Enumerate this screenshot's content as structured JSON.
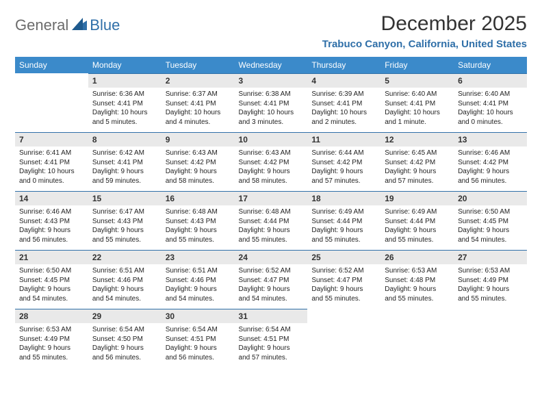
{
  "logo": {
    "word1": "General",
    "word2": "Blue"
  },
  "title": "December 2025",
  "location": "Trabuco Canyon, California, United States",
  "colors": {
    "header_bg": "#3b8aca",
    "header_text": "#ffffff",
    "daynum_bg": "#e9e9e9",
    "daynum_border": "#2f6fa8",
    "title_color": "#333333",
    "location_color": "#2f6fa8",
    "logo_gray": "#6b6b6b",
    "logo_blue": "#2f6fa8",
    "body_text": "#222222",
    "page_bg": "#ffffff"
  },
  "typography": {
    "title_fontsize": 30,
    "location_fontsize": 15,
    "dayheader_fontsize": 12,
    "daynum_fontsize": 12,
    "daybody_fontsize": 10
  },
  "day_headers": [
    "Sunday",
    "Monday",
    "Tuesday",
    "Wednesday",
    "Thursday",
    "Friday",
    "Saturday"
  ],
  "weeks": [
    [
      {
        "empty": true
      },
      {
        "num": "1",
        "sunrise": "Sunrise: 6:36 AM",
        "sunset": "Sunset: 4:41 PM",
        "daylight1": "Daylight: 10 hours",
        "daylight2": "and 5 minutes."
      },
      {
        "num": "2",
        "sunrise": "Sunrise: 6:37 AM",
        "sunset": "Sunset: 4:41 PM",
        "daylight1": "Daylight: 10 hours",
        "daylight2": "and 4 minutes."
      },
      {
        "num": "3",
        "sunrise": "Sunrise: 6:38 AM",
        "sunset": "Sunset: 4:41 PM",
        "daylight1": "Daylight: 10 hours",
        "daylight2": "and 3 minutes."
      },
      {
        "num": "4",
        "sunrise": "Sunrise: 6:39 AM",
        "sunset": "Sunset: 4:41 PM",
        "daylight1": "Daylight: 10 hours",
        "daylight2": "and 2 minutes."
      },
      {
        "num": "5",
        "sunrise": "Sunrise: 6:40 AM",
        "sunset": "Sunset: 4:41 PM",
        "daylight1": "Daylight: 10 hours",
        "daylight2": "and 1 minute."
      },
      {
        "num": "6",
        "sunrise": "Sunrise: 6:40 AM",
        "sunset": "Sunset: 4:41 PM",
        "daylight1": "Daylight: 10 hours",
        "daylight2": "and 0 minutes."
      }
    ],
    [
      {
        "num": "7",
        "sunrise": "Sunrise: 6:41 AM",
        "sunset": "Sunset: 4:41 PM",
        "daylight1": "Daylight: 10 hours",
        "daylight2": "and 0 minutes."
      },
      {
        "num": "8",
        "sunrise": "Sunrise: 6:42 AM",
        "sunset": "Sunset: 4:41 PM",
        "daylight1": "Daylight: 9 hours",
        "daylight2": "and 59 minutes."
      },
      {
        "num": "9",
        "sunrise": "Sunrise: 6:43 AM",
        "sunset": "Sunset: 4:42 PM",
        "daylight1": "Daylight: 9 hours",
        "daylight2": "and 58 minutes."
      },
      {
        "num": "10",
        "sunrise": "Sunrise: 6:43 AM",
        "sunset": "Sunset: 4:42 PM",
        "daylight1": "Daylight: 9 hours",
        "daylight2": "and 58 minutes."
      },
      {
        "num": "11",
        "sunrise": "Sunrise: 6:44 AM",
        "sunset": "Sunset: 4:42 PM",
        "daylight1": "Daylight: 9 hours",
        "daylight2": "and 57 minutes."
      },
      {
        "num": "12",
        "sunrise": "Sunrise: 6:45 AM",
        "sunset": "Sunset: 4:42 PM",
        "daylight1": "Daylight: 9 hours",
        "daylight2": "and 57 minutes."
      },
      {
        "num": "13",
        "sunrise": "Sunrise: 6:46 AM",
        "sunset": "Sunset: 4:42 PM",
        "daylight1": "Daylight: 9 hours",
        "daylight2": "and 56 minutes."
      }
    ],
    [
      {
        "num": "14",
        "sunrise": "Sunrise: 6:46 AM",
        "sunset": "Sunset: 4:43 PM",
        "daylight1": "Daylight: 9 hours",
        "daylight2": "and 56 minutes."
      },
      {
        "num": "15",
        "sunrise": "Sunrise: 6:47 AM",
        "sunset": "Sunset: 4:43 PM",
        "daylight1": "Daylight: 9 hours",
        "daylight2": "and 55 minutes."
      },
      {
        "num": "16",
        "sunrise": "Sunrise: 6:48 AM",
        "sunset": "Sunset: 4:43 PM",
        "daylight1": "Daylight: 9 hours",
        "daylight2": "and 55 minutes."
      },
      {
        "num": "17",
        "sunrise": "Sunrise: 6:48 AM",
        "sunset": "Sunset: 4:44 PM",
        "daylight1": "Daylight: 9 hours",
        "daylight2": "and 55 minutes."
      },
      {
        "num": "18",
        "sunrise": "Sunrise: 6:49 AM",
        "sunset": "Sunset: 4:44 PM",
        "daylight1": "Daylight: 9 hours",
        "daylight2": "and 55 minutes."
      },
      {
        "num": "19",
        "sunrise": "Sunrise: 6:49 AM",
        "sunset": "Sunset: 4:44 PM",
        "daylight1": "Daylight: 9 hours",
        "daylight2": "and 55 minutes."
      },
      {
        "num": "20",
        "sunrise": "Sunrise: 6:50 AM",
        "sunset": "Sunset: 4:45 PM",
        "daylight1": "Daylight: 9 hours",
        "daylight2": "and 54 minutes."
      }
    ],
    [
      {
        "num": "21",
        "sunrise": "Sunrise: 6:50 AM",
        "sunset": "Sunset: 4:45 PM",
        "daylight1": "Daylight: 9 hours",
        "daylight2": "and 54 minutes."
      },
      {
        "num": "22",
        "sunrise": "Sunrise: 6:51 AM",
        "sunset": "Sunset: 4:46 PM",
        "daylight1": "Daylight: 9 hours",
        "daylight2": "and 54 minutes."
      },
      {
        "num": "23",
        "sunrise": "Sunrise: 6:51 AM",
        "sunset": "Sunset: 4:46 PM",
        "daylight1": "Daylight: 9 hours",
        "daylight2": "and 54 minutes."
      },
      {
        "num": "24",
        "sunrise": "Sunrise: 6:52 AM",
        "sunset": "Sunset: 4:47 PM",
        "daylight1": "Daylight: 9 hours",
        "daylight2": "and 54 minutes."
      },
      {
        "num": "25",
        "sunrise": "Sunrise: 6:52 AM",
        "sunset": "Sunset: 4:47 PM",
        "daylight1": "Daylight: 9 hours",
        "daylight2": "and 55 minutes."
      },
      {
        "num": "26",
        "sunrise": "Sunrise: 6:53 AM",
        "sunset": "Sunset: 4:48 PM",
        "daylight1": "Daylight: 9 hours",
        "daylight2": "and 55 minutes."
      },
      {
        "num": "27",
        "sunrise": "Sunrise: 6:53 AM",
        "sunset": "Sunset: 4:49 PM",
        "daylight1": "Daylight: 9 hours",
        "daylight2": "and 55 minutes."
      }
    ],
    [
      {
        "num": "28",
        "sunrise": "Sunrise: 6:53 AM",
        "sunset": "Sunset: 4:49 PM",
        "daylight1": "Daylight: 9 hours",
        "daylight2": "and 55 minutes."
      },
      {
        "num": "29",
        "sunrise": "Sunrise: 6:54 AM",
        "sunset": "Sunset: 4:50 PM",
        "daylight1": "Daylight: 9 hours",
        "daylight2": "and 56 minutes."
      },
      {
        "num": "30",
        "sunrise": "Sunrise: 6:54 AM",
        "sunset": "Sunset: 4:51 PM",
        "daylight1": "Daylight: 9 hours",
        "daylight2": "and 56 minutes."
      },
      {
        "num": "31",
        "sunrise": "Sunrise: 6:54 AM",
        "sunset": "Sunset: 4:51 PM",
        "daylight1": "Daylight: 9 hours",
        "daylight2": "and 57 minutes."
      },
      {
        "empty": true
      },
      {
        "empty": true
      },
      {
        "empty": true
      }
    ]
  ]
}
